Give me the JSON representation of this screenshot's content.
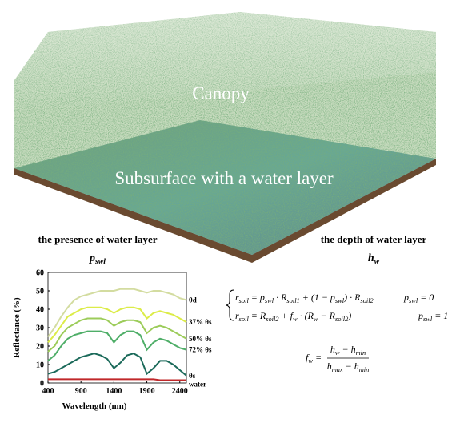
{
  "illustration": {
    "canopy_label": "Canopy",
    "subsurface_label": "Subsurface with a water layer",
    "left_caption": "the presence of water layer",
    "left_symbol": {
      "base": "p",
      "sub": "swl"
    },
    "right_caption": "the depth of water layer",
    "right_symbol": {
      "base": "h",
      "sub": "w"
    }
  },
  "chart_data": {
    "type": "line",
    "x_label": "Wavelength (nm)",
    "y_label": "Reflectance (%)",
    "x": [
      400,
      500,
      600,
      700,
      800,
      900,
      1000,
      1100,
      1200,
      1300,
      1400,
      1500,
      1600,
      1700,
      1800,
      1900,
      2000,
      2100,
      2200,
      2300,
      2400,
      2500
    ],
    "xlim": [
      400,
      2500
    ],
    "xticks": [
      400,
      900,
      1400,
      1900,
      2400
    ],
    "ylim": [
      0,
      60
    ],
    "yticks": [
      0,
      10,
      20,
      30,
      40,
      50,
      60
    ],
    "series": [
      {
        "name": "θd",
        "color": "#d3dca0",
        "values": [
          25,
          30,
          36,
          41,
          45,
          47,
          48,
          49,
          50,
          50,
          50,
          51,
          51,
          51,
          50,
          49,
          50,
          50,
          49,
          48,
          46,
          45
        ]
      },
      {
        "name": "37% θs",
        "color": "#dcec48",
        "values": [
          22,
          26,
          31,
          36,
          38,
          40,
          41,
          41,
          41,
          40,
          38,
          40,
          41,
          41,
          40,
          35,
          38,
          39,
          38,
          37,
          35,
          33
        ]
      },
      {
        "name": "50% θs",
        "color": "#9ccc5a",
        "values": [
          17,
          20,
          26,
          30,
          32,
          34,
          35,
          35,
          35,
          34,
          31,
          33,
          34,
          34,
          33,
          27,
          30,
          31,
          30,
          28,
          26,
          24
        ]
      },
      {
        "name": "72% θs",
        "color": "#4fae68",
        "values": [
          12,
          15,
          20,
          24,
          26,
          27,
          28,
          28,
          28,
          27,
          22,
          26,
          28,
          28,
          26,
          18,
          22,
          24,
          23,
          21,
          19,
          18
        ]
      },
      {
        "name": "θs",
        "color": "#1b6a5a",
        "values": [
          5,
          6,
          8,
          10,
          12,
          14,
          15,
          16,
          15,
          13,
          8,
          11,
          15,
          16,
          14,
          5,
          8,
          12,
          12,
          10,
          7,
          4
        ]
      },
      {
        "name": "water",
        "color": "#c0282a",
        "values": [
          2,
          2,
          2,
          2,
          2,
          2,
          2,
          2,
          2,
          2,
          2,
          2,
          2,
          2,
          2,
          2,
          2,
          1.5,
          1.5,
          1.5,
          1.5,
          1.5
        ]
      }
    ]
  },
  "equations": {
    "eq1": [
      {
        "base": "r",
        "sub": "soil"
      },
      " = ",
      {
        "base": "p",
        "sub": "swl"
      },
      " · ",
      {
        "base": "R",
        "sub": "soil1"
      },
      " + (1 − ",
      {
        "base": "p",
        "sub": "swl"
      },
      ") · ",
      {
        "base": "R",
        "sub": "soil2"
      }
    ],
    "cond1": [
      {
        "base": "p",
        "sub": "swl"
      },
      " = 0"
    ],
    "eq2": [
      {
        "base": "r",
        "sub": "soil"
      },
      " = ",
      {
        "base": "R",
        "sub": "soil2"
      },
      " + ",
      {
        "base": "f",
        "sub": "w"
      },
      " · (",
      {
        "base": "R",
        "sub": "w"
      },
      " − ",
      {
        "base": "R",
        "sub": "soil2"
      },
      ")"
    ],
    "cond2": [
      {
        "base": "p",
        "sub": "swl"
      },
      " = 1"
    ],
    "eq3_lhs": [
      {
        "base": "f",
        "sub": "w"
      },
      " = "
    ],
    "eq3_num": [
      {
        "base": "h",
        "sub": "w"
      },
      " − ",
      {
        "base": "h",
        "sub": "min"
      }
    ],
    "eq3_den": [
      {
        "base": "h",
        "sub": "max"
      },
      " − ",
      {
        "base": "h",
        "sub": "min"
      }
    ]
  }
}
